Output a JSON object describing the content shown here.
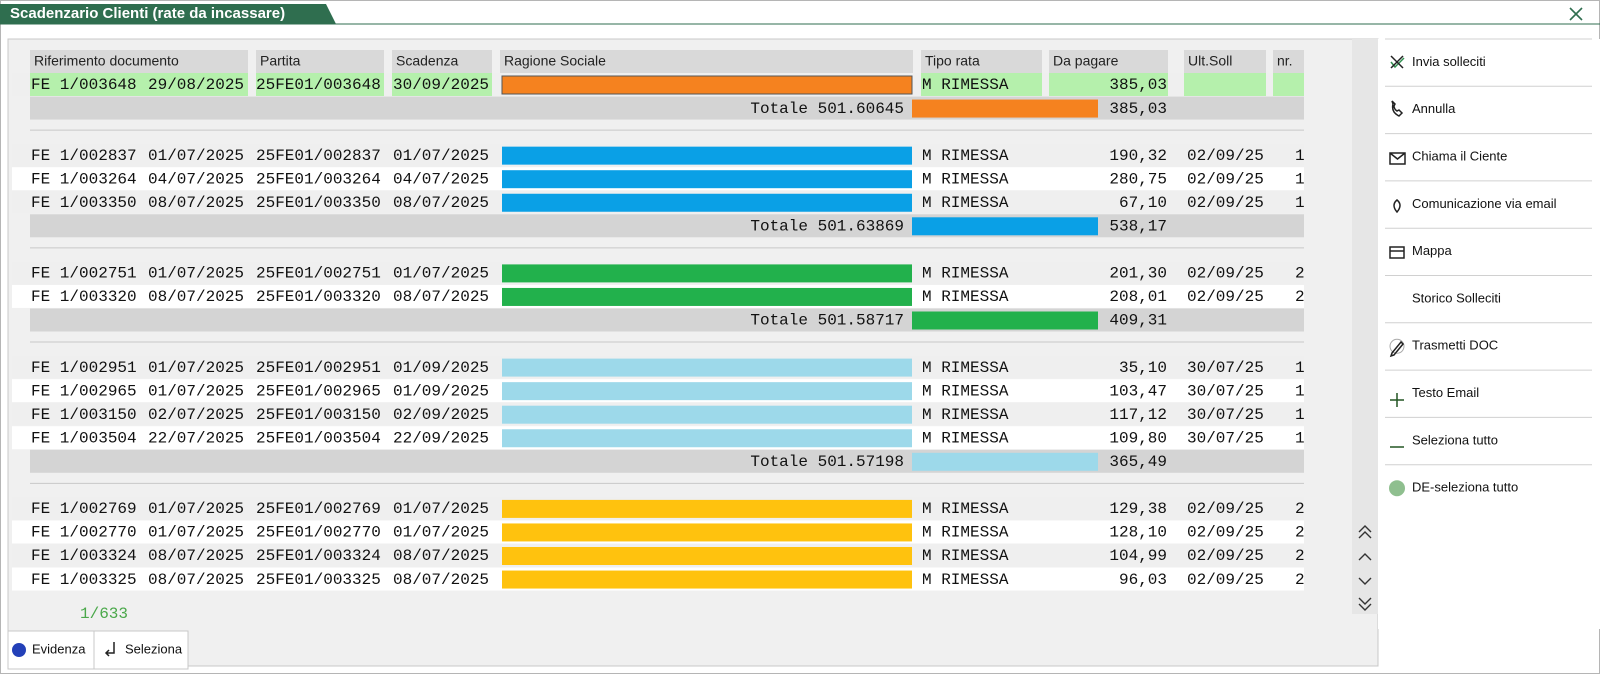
{
  "window": {
    "title": "Scadenzario Clienti (rate da incassare)"
  },
  "table": {
    "columns": [
      "Riferimento documento",
      "Partita",
      "Scadenza",
      "Ragione Sociale",
      "Tipo rata",
      "Da pagare",
      "Ult.Soll",
      "nr."
    ],
    "groups": [
      {
        "color": "#f5821f",
        "rows": [
          {
            "doc": "FE 1/003648",
            "date": "29/08/2025",
            "partita": "25FE01/003648",
            "scadenza": "30/09/2025",
            "tipo": "M RIMESSA",
            "amount": "385,03",
            "selected": true
          }
        ],
        "total": {
          "label": "Totale 501.60645",
          "amount": "385,03"
        }
      },
      {
        "color": "#0aa0e6",
        "rows": [
          {
            "doc": "FE 1/002837",
            "date": "01/07/2025",
            "partita": "25FE01/002837",
            "scadenza": "01/07/2025",
            "tipo": "M RIMESSA",
            "amount": "190,32",
            "soll": "02/09/25",
            "nr": "1"
          },
          {
            "doc": "FE 1/003264",
            "date": "04/07/2025",
            "partita": "25FE01/003264",
            "scadenza": "04/07/2025",
            "tipo": "M RIMESSA",
            "amount": "280,75",
            "soll": "02/09/25",
            "nr": "1"
          },
          {
            "doc": "FE 1/003350",
            "date": "08/07/2025",
            "partita": "25FE01/003350",
            "scadenza": "08/07/2025",
            "tipo": "M RIMESSA",
            "amount": "67,10",
            "soll": "02/09/25",
            "nr": "1"
          }
        ],
        "total": {
          "label": "Totale 501.63869",
          "amount": "538,17"
        }
      },
      {
        "color": "#22b14c",
        "rows": [
          {
            "doc": "FE 1/002751",
            "date": "01/07/2025",
            "partita": "25FE01/002751",
            "scadenza": "01/07/2025",
            "tipo": "M RIMESSA",
            "amount": "201,30",
            "soll": "02/09/25",
            "nr": "2"
          },
          {
            "doc": "FE 1/003320",
            "date": "08/07/2025",
            "partita": "25FE01/003320",
            "scadenza": "08/07/2025",
            "tipo": "M RIMESSA",
            "amount": "208,01",
            "soll": "02/09/25",
            "nr": "2"
          }
        ],
        "total": {
          "label": "Totale 501.58717",
          "amount": "409,31"
        }
      },
      {
        "color": "#9dd9ea",
        "rows": [
          {
            "doc": "FE 1/002951",
            "date": "01/07/2025",
            "partita": "25FE01/002951",
            "scadenza": "01/09/2025",
            "tipo": "M RIMESSA",
            "amount": "35,10",
            "soll": "30/07/25",
            "nr": "1"
          },
          {
            "doc": "FE 1/002965",
            "date": "01/07/2025",
            "partita": "25FE01/002965",
            "scadenza": "01/09/2025",
            "tipo": "M RIMESSA",
            "amount": "103,47",
            "soll": "30/07/25",
            "nr": "1"
          },
          {
            "doc": "FE 1/003150",
            "date": "02/07/2025",
            "partita": "25FE01/003150",
            "scadenza": "02/09/2025",
            "tipo": "M RIMESSA",
            "amount": "117,12",
            "soll": "30/07/25",
            "nr": "1"
          },
          {
            "doc": "FE 1/003504",
            "date": "22/07/2025",
            "partita": "25FE01/003504",
            "scadenza": "22/09/2025",
            "tipo": "M RIMESSA",
            "amount": "109,80",
            "soll": "30/07/25",
            "nr": "1"
          }
        ],
        "total": {
          "label": "Totale 501.57198",
          "amount": "365,49"
        }
      },
      {
        "color": "#ffc20e",
        "rows": [
          {
            "doc": "FE 1/002769",
            "date": "01/07/2025",
            "partita": "25FE01/002769",
            "scadenza": "01/07/2025",
            "tipo": "M RIMESSA",
            "amount": "129,38",
            "soll": "02/09/25",
            "nr": "2"
          },
          {
            "doc": "FE 1/002770",
            "date": "01/07/2025",
            "partita": "25FE01/002770",
            "scadenza": "01/07/2025",
            "tipo": "M RIMESSA",
            "amount": "128,10",
            "soll": "02/09/25",
            "nr": "2"
          },
          {
            "doc": "FE 1/003324",
            "date": "08/07/2025",
            "partita": "25FE01/003324",
            "scadenza": "08/07/2025",
            "tipo": "M RIMESSA",
            "amount": "104,99",
            "soll": "02/09/25",
            "nr": "2"
          },
          {
            "doc": "FE 1/003325",
            "date": "08/07/2025",
            "partita": "25FE01/003325",
            "scadenza": "08/07/2025",
            "tipo": "M RIMESSA",
            "amount": "96,03",
            "soll": "02/09/25",
            "nr": "2"
          }
        ]
      }
    ]
  },
  "counter": "1/633",
  "sidebar": {
    "actions": [
      "Invia solleciti",
      "Annulla",
      "Chiama il Ciente",
      "Comunicazione via email",
      "Mappa",
      "Storico Solleciti",
      "Trasmetti DOC",
      "Testo Email",
      "Seleziona tutto",
      "DE-seleziona tutto"
    ]
  },
  "footer": {
    "buttons": [
      "Evidenza",
      "Seleziona"
    ]
  }
}
